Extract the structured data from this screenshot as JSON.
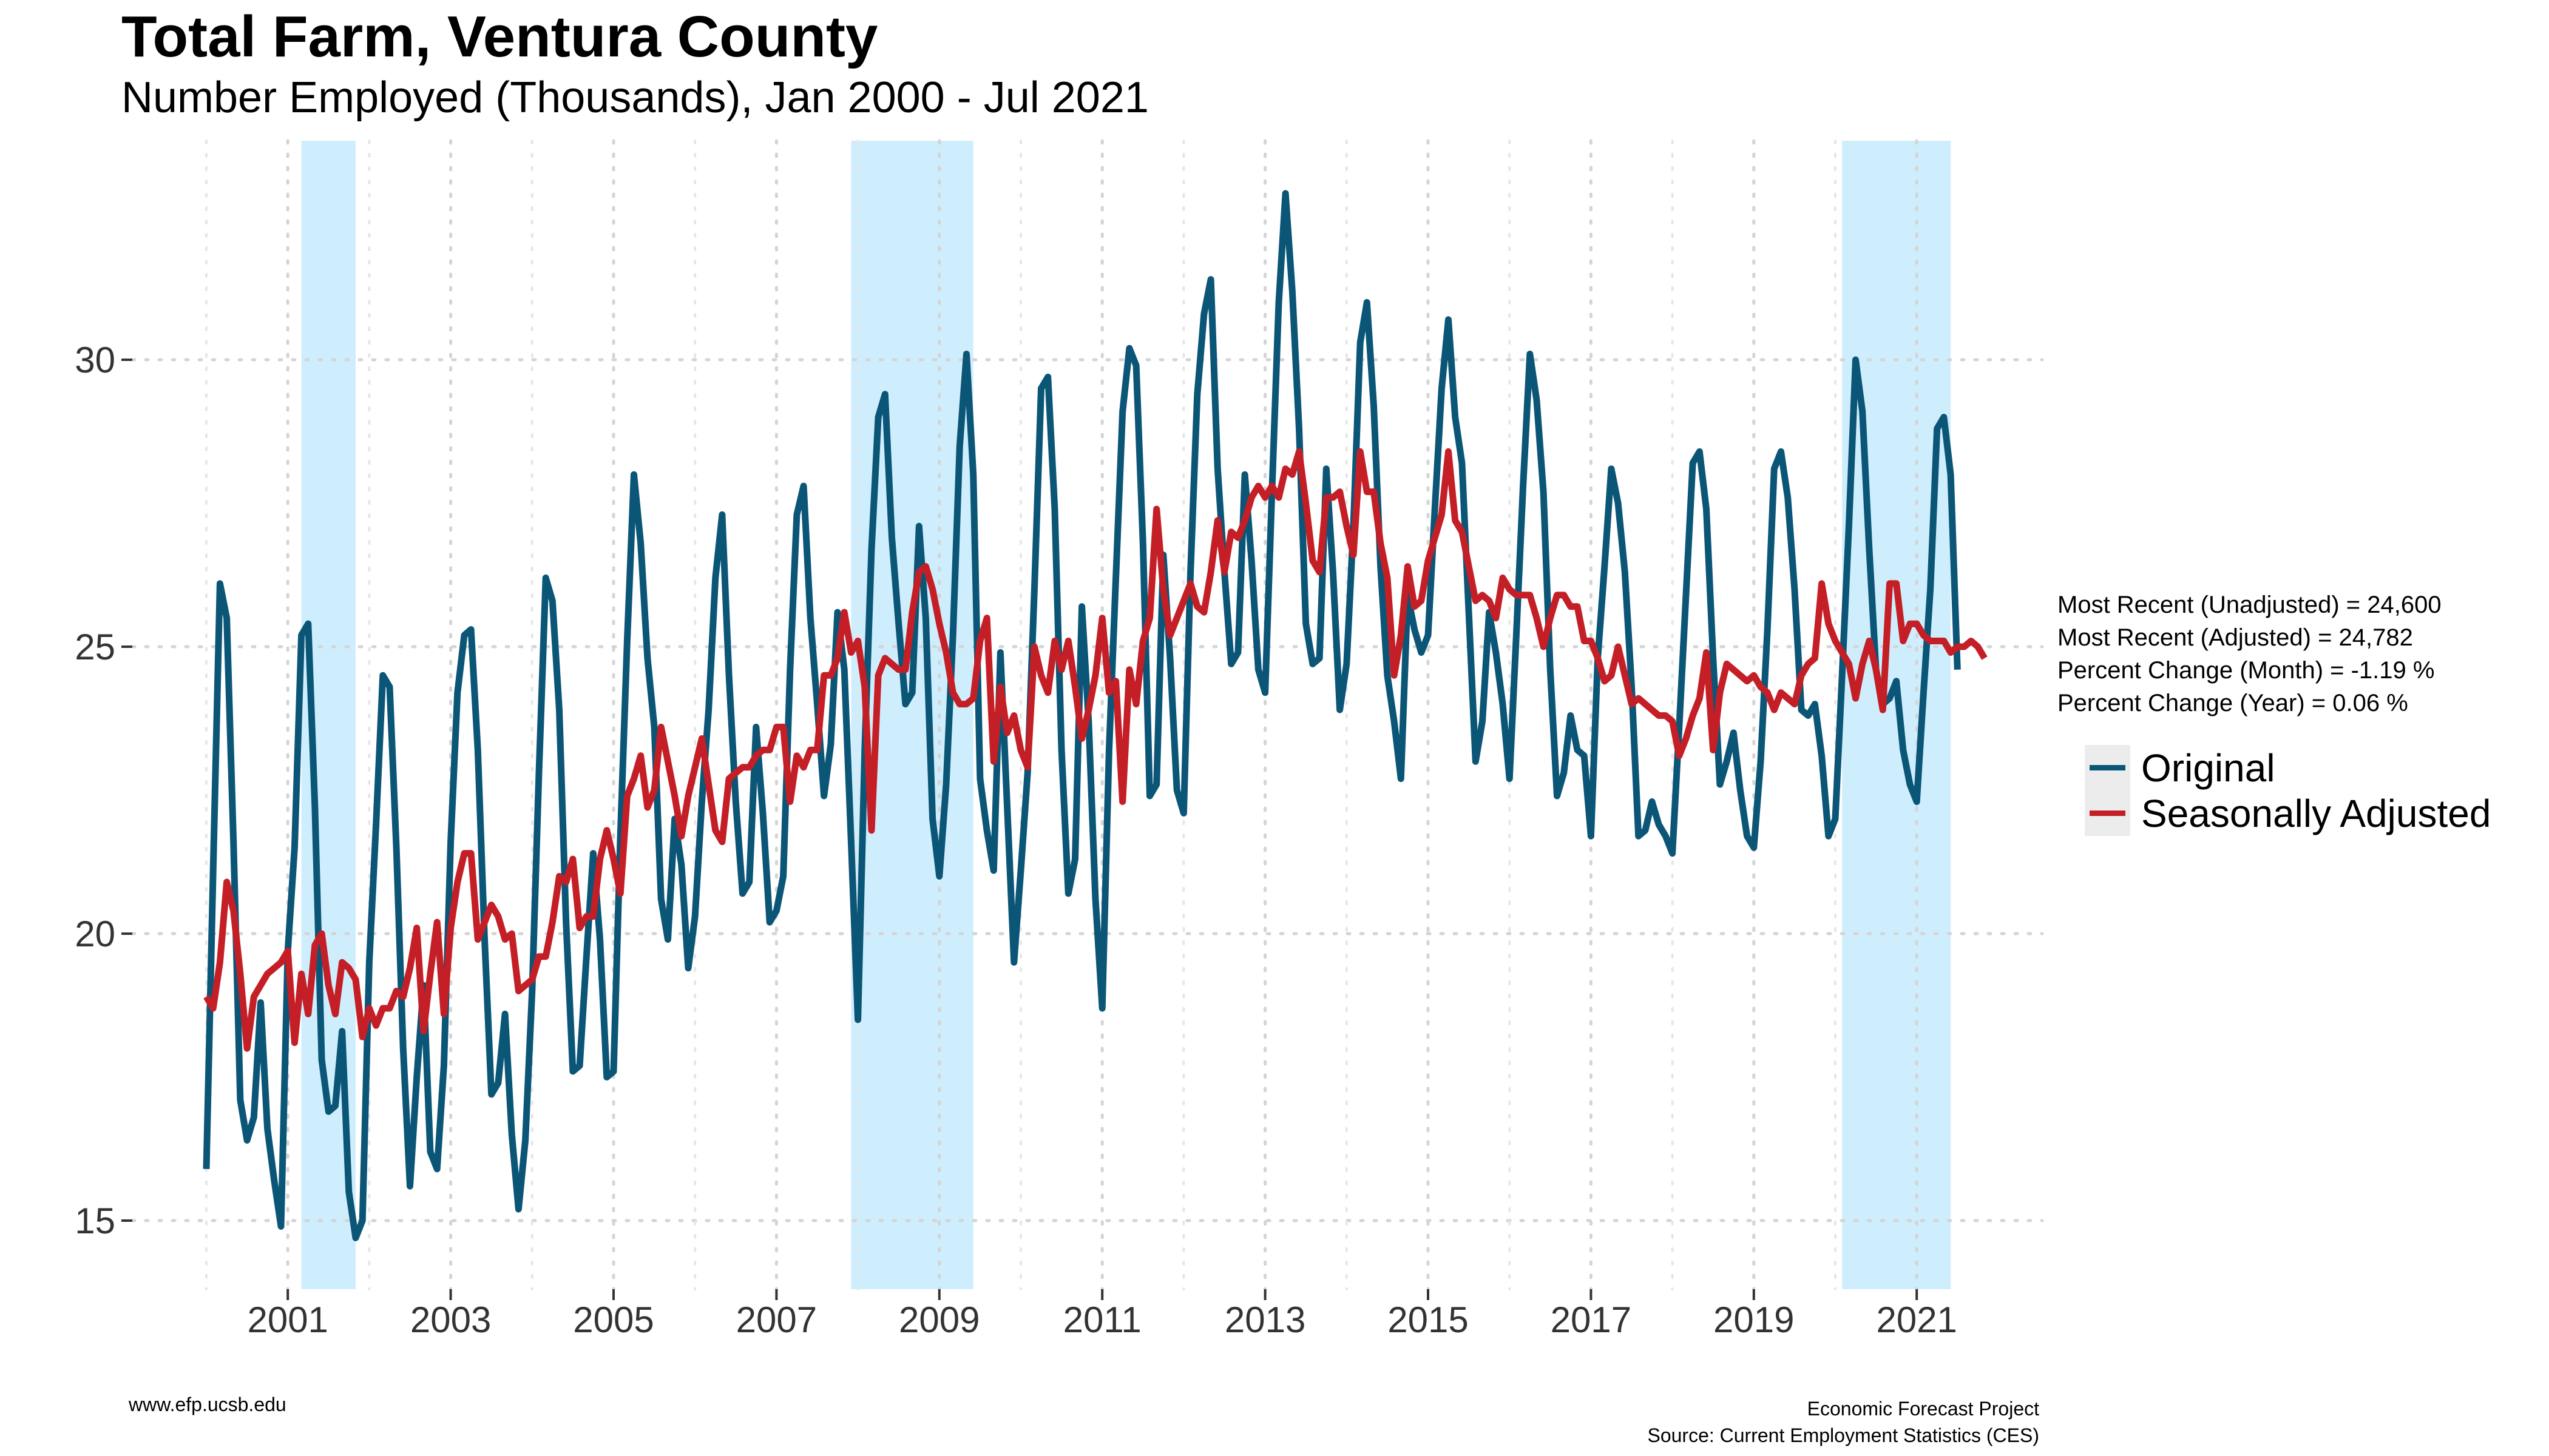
{
  "chart_data": {
    "type": "line",
    "title": "Total Farm, Ventura County",
    "subtitle": "Number Employed (Thousands), Jan 2000 - Jul 2021",
    "xlabel": "",
    "ylabel": "",
    "xlim": [
      2000,
      2021.583
    ],
    "ylim": [
      14,
      33
    ],
    "x_ticks": [
      2001,
      2003,
      2005,
      2007,
      2009,
      2011,
      2013,
      2015,
      2017,
      2019,
      2021
    ],
    "y_ticks": [
      15,
      20,
      25,
      30
    ],
    "grid": true,
    "legend_position": "right",
    "recession_shading": [
      [
        2001.167,
        2001.833
      ],
      [
        2007.917,
        2009.417
      ],
      [
        2020.083,
        2021.417
      ]
    ],
    "series": [
      {
        "name": "Original",
        "color": "#0b5577",
        "values": [
          15.9,
          21.1,
          26.1,
          25.5,
          21.6,
          17.1,
          16.4,
          16.8,
          18.8,
          16.6,
          15.7,
          14.9,
          19.7,
          21.5,
          25.2,
          25.4,
          22.2,
          17.8,
          16.9,
          17.0,
          18.3,
          15.5,
          14.7,
          15.0,
          19.5,
          21.9,
          24.5,
          24.3,
          21.5,
          18.0,
          15.6,
          17.5,
          19.1,
          16.2,
          15.9,
          17.7,
          21.6,
          24.2,
          25.2,
          25.3,
          23.2,
          19.9,
          17.2,
          17.4,
          18.6,
          16.5,
          15.2,
          16.4,
          19.0,
          22.8,
          26.2,
          25.8,
          23.9,
          20.2,
          17.6,
          17.7,
          19.6,
          21.4,
          19.9,
          17.5,
          17.6,
          21.7,
          25.1,
          28.0,
          26.8,
          24.8,
          23.6,
          20.6,
          19.9,
          22.0,
          21.2,
          19.4,
          20.3,
          22.3,
          23.9,
          26.2,
          27.3,
          24.5,
          22.3,
          20.7,
          20.9,
          23.6,
          22.1,
          20.2,
          20.4,
          21.0,
          24.6,
          27.3,
          27.8,
          25.5,
          24.0,
          22.4,
          23.3,
          25.6,
          24.6,
          21.6,
          18.5,
          23.2,
          26.7,
          29.0,
          29.4,
          26.9,
          25.4,
          24.0,
          24.2,
          27.1,
          25.5,
          22.0,
          21.0,
          22.6,
          25.2,
          28.5,
          30.1,
          28.0,
          22.7,
          21.8,
          21.1,
          24.9,
          22.2,
          19.5,
          21.1,
          22.8,
          26.0,
          29.5,
          29.7,
          27.4,
          23.2,
          20.7,
          21.3,
          25.7,
          23.7,
          20.6,
          18.7,
          23.2,
          26.2,
          29.1,
          30.2,
          29.9,
          26.8,
          22.4,
          22.6,
          26.6,
          24.8,
          22.5,
          22.1,
          26.3,
          29.4,
          30.8,
          31.4,
          28.1,
          26.3,
          24.7,
          24.9,
          28.0,
          26.5,
          24.6,
          24.2,
          27.7,
          31.0,
          32.9,
          31.2,
          28.8,
          25.4,
          24.7,
          24.8,
          28.1,
          26.3,
          23.9,
          24.7,
          27.1,
          30.3,
          31.0,
          29.2,
          26.4,
          24.5,
          23.7,
          22.7,
          25.9,
          25.3,
          24.9,
          25.2,
          27.4,
          29.5,
          30.7,
          29.0,
          28.2,
          25.6,
          23.0,
          23.7,
          25.6,
          24.9,
          24.0,
          22.7,
          25.2,
          27.8,
          30.1,
          29.3,
          27.7,
          24.6,
          22.4,
          22.8,
          23.8,
          23.2,
          23.1,
          21.7,
          24.8,
          26.4,
          28.1,
          27.5,
          26.3,
          24.3,
          21.7,
          21.8,
          22.3,
          21.9,
          21.7,
          21.4,
          23.6,
          25.9,
          28.2,
          28.4,
          27.4,
          24.8,
          22.6,
          23.0,
          23.5,
          22.5,
          21.7,
          21.5,
          23.0,
          25.3,
          28.1,
          28.4,
          27.6,
          26.0,
          23.9,
          23.8,
          24.0,
          23.1,
          21.7,
          22.0,
          24.5,
          27.1,
          30.0,
          29.1,
          26.7,
          24.6,
          24.0,
          24.1,
          24.4,
          23.2,
          22.6,
          22.3,
          24.2,
          26.0,
          28.8,
          29.0,
          28.0,
          24.6
        ]
      },
      {
        "name": "Seasonally Adjusted",
        "color": "#c41f26",
        "values": [
          18.9,
          18.7,
          19.5,
          20.9,
          20.4,
          19.3,
          18.0,
          18.9,
          19.1,
          19.3,
          19.4,
          19.5,
          19.7,
          18.1,
          19.3,
          18.6,
          19.8,
          20.0,
          19.1,
          18.6,
          19.5,
          19.4,
          19.2,
          18.2,
          18.7,
          18.4,
          18.7,
          18.7,
          19.0,
          18.9,
          19.4,
          20.1,
          18.3,
          19.3,
          20.2,
          18.6,
          20.1,
          20.9,
          21.4,
          21.4,
          19.9,
          20.2,
          20.5,
          20.3,
          19.9,
          20.0,
          19.0,
          19.1,
          19.2,
          19.6,
          19.6,
          20.2,
          21.0,
          20.9,
          21.3,
          20.1,
          20.3,
          20.3,
          21.3,
          21.8,
          21.3,
          20.7,
          22.4,
          22.7,
          23.1,
          22.2,
          22.5,
          23.6,
          23.0,
          22.4,
          21.7,
          22.4,
          22.9,
          23.4,
          22.6,
          21.8,
          21.6,
          22.7,
          22.8,
          22.9,
          22.9,
          23.1,
          23.2,
          23.2,
          23.6,
          23.6,
          22.3,
          23.1,
          22.9,
          23.2,
          23.2,
          24.5,
          24.5,
          24.8,
          25.6,
          24.9,
          25.1,
          24.3,
          21.8,
          24.5,
          24.8,
          24.7,
          24.6,
          24.6,
          25.6,
          26.3,
          26.4,
          26.0,
          25.4,
          24.9,
          24.2,
          24.0,
          24.0,
          24.1,
          25.1,
          25.5,
          23.0,
          24.3,
          23.5,
          23.8,
          23.2,
          22.9,
          25.0,
          24.5,
          24.2,
          25.1,
          24.6,
          25.1,
          24.3,
          23.4,
          23.9,
          24.5,
          25.5,
          24.2,
          24.4,
          22.3,
          24.6,
          24.0,
          25.1,
          25.5,
          27.4,
          26.0,
          25.2,
          25.5,
          25.8,
          26.1,
          25.7,
          25.6,
          26.3,
          27.2,
          26.3,
          27.0,
          26.9,
          27.2,
          27.6,
          27.8,
          27.6,
          27.8,
          27.6,
          28.1,
          28.0,
          28.4,
          27.5,
          26.5,
          26.3,
          27.6,
          27.6,
          27.7,
          27.1,
          26.6,
          28.4,
          27.7,
          27.7,
          26.8,
          26.2,
          24.5,
          25.2,
          26.4,
          25.7,
          25.8,
          26.5,
          26.9,
          27.3,
          28.4,
          27.2,
          27.0,
          26.4,
          25.8,
          25.9,
          25.8,
          25.5,
          26.2,
          26.0,
          25.9,
          25.9,
          25.9,
          25.5,
          25.0,
          25.5,
          25.9,
          25.9,
          25.7,
          25.7,
          25.1,
          25.1,
          24.8,
          24.4,
          24.5,
          25.0,
          24.5,
          24.0,
          24.1,
          24.0,
          23.9,
          23.8,
          23.8,
          23.7,
          23.1,
          23.4,
          23.8,
          24.1,
          24.9,
          23.2,
          24.2,
          24.7,
          24.6,
          24.5,
          24.4,
          24.5,
          24.3,
          24.2,
          23.9,
          24.2,
          24.1,
          24.0,
          24.5,
          24.7,
          24.8,
          26.1,
          25.4,
          25.1,
          24.9,
          24.7,
          24.1,
          24.7,
          25.1,
          24.6,
          23.9,
          26.1,
          26.1,
          25.1,
          25.4,
          25.4,
          25.2,
          25.1,
          25.1,
          25.1,
          24.9,
          25.0,
          25.0,
          25.1,
          25.0,
          24.8
        ]
      }
    ]
  },
  "stats": {
    "unadjusted": "Most Recent (Unadjusted) = 24,600",
    "adjusted": "Most Recent (Adjusted) = 24,782",
    "month_change": "Percent Change (Month) = -1.19 %",
    "year_change": "Percent Change (Year) = 0.06 %"
  },
  "footer": {
    "website": "www.efp.ucsb.edu",
    "org": "Economic Forecast Project",
    "source": "Source: Current Employment Statistics (CES)"
  },
  "colors": {
    "recession": "#cfeefd",
    "grid": "#d4d4d4"
  }
}
